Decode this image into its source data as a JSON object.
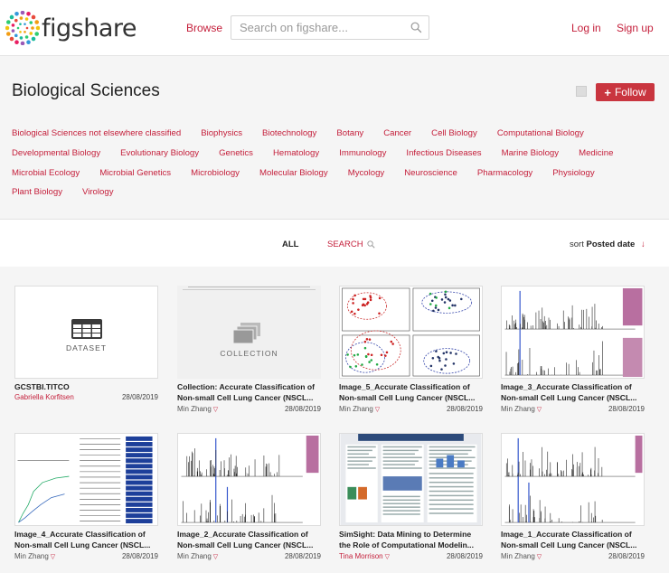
{
  "header": {
    "logo_text": "figshare",
    "browse": "Browse",
    "search_placeholder": "Search on figshare...",
    "login": "Log in",
    "signup": "Sign up"
  },
  "category": {
    "title": "Biological Sciences",
    "follow_label": "Follow",
    "subcategories": [
      [
        "Biological Sciences not elsewhere classified",
        "Biophysics",
        "Biotechnology",
        "Botany",
        "Cancer",
        "Cell Biology",
        "Computational Biology"
      ],
      [
        "Developmental Biology",
        "Evolutionary Biology",
        "Genetics",
        "Hematology",
        "Immunology",
        "Infectious Diseases",
        "Marine Biology",
        "Medicine"
      ],
      [
        "Microbial Ecology",
        "Microbial Genetics",
        "Microbiology",
        "Molecular Biology",
        "Mycology",
        "Neuroscience",
        "Pharmacology",
        "Physiology"
      ],
      [
        "Plant Biology",
        "Virology"
      ]
    ]
  },
  "tabs": {
    "all": "ALL",
    "search": "SEARCH",
    "sort_prefix": "sort",
    "sort_value": "Posted date"
  },
  "cards": [
    {
      "kind": "dataset",
      "thumb_label": "DATASET",
      "title1": "GCSTBI.TITCO",
      "title2": "",
      "author": "Gabriella Korfitsen",
      "author_red": true,
      "date": "28/08/2019"
    },
    {
      "kind": "collection",
      "thumb_label": "COLLECTION",
      "title1": "Collection: Accurate Classification of",
      "title2": "Non-small Cell Lung Cancer (NSCL...",
      "author": "Min Zhang",
      "author_red": false,
      "date": "28/08/2019"
    },
    {
      "kind": "scatter",
      "title1": "Image_5_Accurate Classification of",
      "title2": "Non-small Cell Lung Cancer (NSCL...",
      "author": "Min Zhang",
      "author_red": false,
      "date": "28/08/2019"
    },
    {
      "kind": "spectrum",
      "title1": "Image_3_Accurate Classification of",
      "title2": "Non-small Cell Lung Cancer (NSCL...",
      "author": "Min Zhang",
      "author_red": false,
      "date": "28/08/2019"
    },
    {
      "kind": "barlist",
      "title1": "Image_4_Accurate Classification of",
      "title2": "Non-small Cell Lung Cancer (NSCL...",
      "author": "Min Zhang",
      "author_red": false,
      "date": "28/08/2019"
    },
    {
      "kind": "spectrum2",
      "title1": "Image_2_Accurate Classification of",
      "title2": "Non-small Cell Lung Cancer (NSCL...",
      "author": "Min Zhang",
      "author_red": false,
      "date": "28/08/2019"
    },
    {
      "kind": "poster",
      "title1": "SimSight: Data Mining to Determine",
      "title2": "the Role of Computational Modelin...",
      "author": "Tina Morrison",
      "author_red": true,
      "date": "28/08/2019"
    },
    {
      "kind": "spectrum3",
      "title1": "Image_1_Accurate Classification of",
      "title2": "Non-small Cell Lung Cancer (NSCL...",
      "author": "Min Zhang",
      "author_red": false,
      "date": "28/08/2019"
    }
  ],
  "colors": {
    "accent": "#c41e3a",
    "follow_bg": "#c9353f",
    "panel_bg": "#f5f5f5"
  }
}
